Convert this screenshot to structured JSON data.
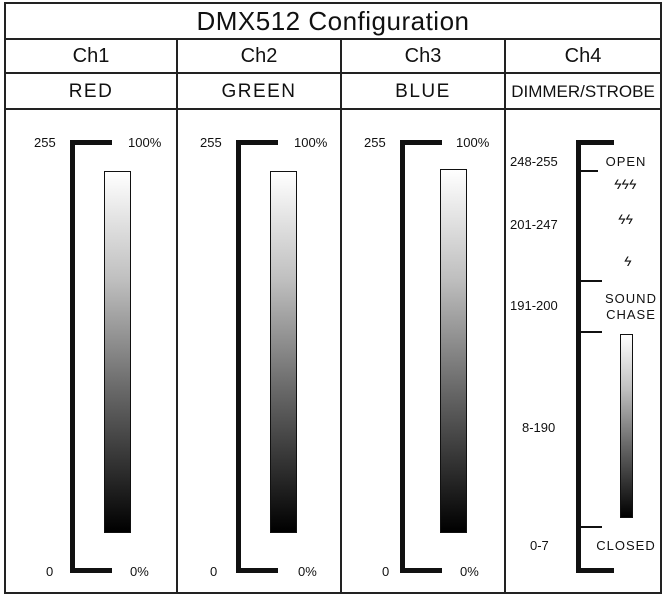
{
  "title": "DMX512 Configuration",
  "channels": [
    {
      "id": "Ch1",
      "function": "RED",
      "max_value": "255",
      "max_pct": "100%",
      "min_value": "0",
      "min_pct": "0%"
    },
    {
      "id": "Ch2",
      "function": "GREEN",
      "max_value": "255",
      "max_pct": "100%",
      "min_value": "0",
      "min_pct": "0%"
    },
    {
      "id": "Ch3",
      "function": "BLUE",
      "max_value": "255",
      "max_pct": "100%",
      "min_value": "0",
      "min_pct": "0%"
    },
    {
      "id": "Ch4",
      "function": "DIMMER/STROBE"
    }
  ],
  "ch4_ranges": [
    {
      "range": "248-255",
      "function": "OPEN"
    },
    {
      "range": "201-247",
      "function": "STROBE"
    },
    {
      "range": "191-200",
      "function": "SOUND CHASE"
    },
    {
      "range": "8-190",
      "function": "DIMMER"
    },
    {
      "range": "0-7",
      "function": "CLOSED"
    }
  ],
  "ch4_labels": {
    "open": "OPEN",
    "sound": "SOUND",
    "chase": "CHASE",
    "closed": "CLOSED"
  },
  "strobe_symbols": {
    "fast": "ϟϟϟ",
    "medium": "ϟϟ",
    "slow": "ϟ"
  }
}
